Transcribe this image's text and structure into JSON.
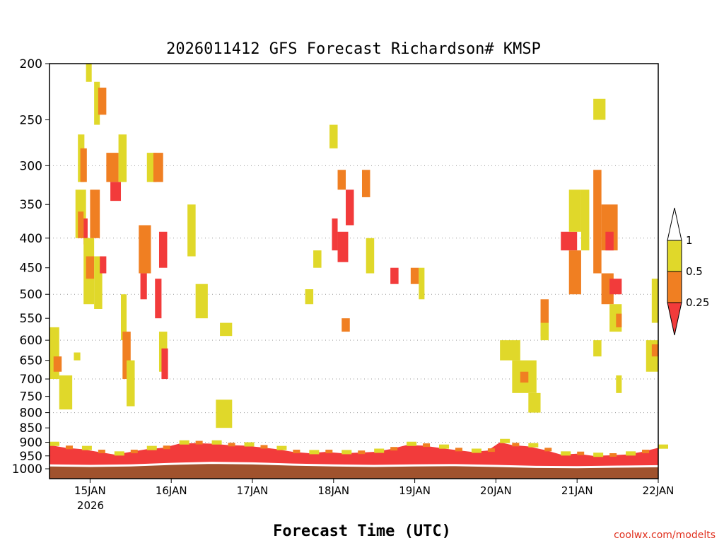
{
  "chart_data": {
    "type": "heatmap",
    "title": "2026011412 GFS Forecast Richardson# KMSP",
    "xlabel": "Forecast Time (UTC)",
    "credit": "coolwx.com/modelts",
    "x_tick_labels": [
      "15JAN",
      "16JAN",
      "17JAN",
      "18JAN",
      "19JAN",
      "20JAN",
      "21JAN",
      "22JAN"
    ],
    "x_year_label": "2026",
    "x_range_days": [
      14.5,
      22.0
    ],
    "y_tick_labels": [
      "200",
      "250",
      "300",
      "350",
      "400",
      "450",
      "500",
      "550",
      "600",
      "650",
      "700",
      "750",
      "800",
      "850",
      "900",
      "950",
      "1000"
    ],
    "y_range_hPa": [
      200,
      1040
    ],
    "grid": "dotted horizontal at 300, 400, 500, 600, 700, 800, 900",
    "legend": {
      "placement": "right",
      "levels": [
        "1",
        "0.5",
        "0.25"
      ],
      "colors": {
        "ri_0.5_1": "#e0d82a",
        "ri_0.25_0.5": "#f07f22",
        "ri_below_0.25": "#f23b3b",
        "terrain": "#a0522d"
      }
    },
    "notes": "Cells are time (day of January) x pressure (hPa) patches colored by Richardson number bin.",
    "regions": [
      {
        "t0": 14.5,
        "t1": 14.62,
        "p0": 570,
        "p1": 700,
        "bin": "y"
      },
      {
        "t0": 14.55,
        "t1": 14.65,
        "p0": 640,
        "p1": 680,
        "bin": "o"
      },
      {
        "t0": 14.62,
        "t1": 14.78,
        "p0": 690,
        "p1": 790,
        "bin": "y"
      },
      {
        "t0": 14.8,
        "t1": 14.88,
        "p0": 630,
        "p1": 650,
        "bin": "y"
      },
      {
        "t0": 14.85,
        "t1": 14.93,
        "p0": 265,
        "p1": 320,
        "bin": "y"
      },
      {
        "t0": 14.88,
        "t1": 14.96,
        "p0": 280,
        "p1": 320,
        "bin": "o"
      },
      {
        "t0": 14.82,
        "t1": 14.95,
        "p0": 330,
        "p1": 400,
        "bin": "y"
      },
      {
        "t0": 14.85,
        "t1": 14.92,
        "p0": 360,
        "p1": 400,
        "bin": "o"
      },
      {
        "t0": 14.92,
        "t1": 14.97,
        "p0": 370,
        "p1": 410,
        "bin": "r"
      },
      {
        "t0": 14.92,
        "t1": 15.05,
        "p0": 400,
        "p1": 520,
        "bin": "y"
      },
      {
        "t0": 14.95,
        "t1": 15.05,
        "p0": 430,
        "p1": 470,
        "bin": "o"
      },
      {
        "t0": 14.95,
        "t1": 15.02,
        "p0": 200,
        "p1": 215,
        "bin": "y"
      },
      {
        "t0": 15.05,
        "t1": 15.12,
        "p0": 215,
        "p1": 255,
        "bin": "y"
      },
      {
        "t0": 15.1,
        "t1": 15.2,
        "p0": 220,
        "p1": 245,
        "bin": "o"
      },
      {
        "t0": 15.0,
        "t1": 15.12,
        "p0": 330,
        "p1": 400,
        "bin": "o"
      },
      {
        "t0": 15.05,
        "t1": 15.15,
        "p0": 430,
        "p1": 530,
        "bin": "y"
      },
      {
        "t0": 15.12,
        "t1": 15.2,
        "p0": 430,
        "p1": 460,
        "bin": "r"
      },
      {
        "t0": 15.2,
        "t1": 15.35,
        "p0": 285,
        "p1": 320,
        "bin": "o"
      },
      {
        "t0": 15.25,
        "t1": 15.38,
        "p0": 320,
        "p1": 345,
        "bin": "r"
      },
      {
        "t0": 15.35,
        "t1": 15.45,
        "p0": 265,
        "p1": 320,
        "bin": "y"
      },
      {
        "t0": 15.38,
        "t1": 15.45,
        "p0": 500,
        "p1": 600,
        "bin": "y"
      },
      {
        "t0": 15.4,
        "t1": 15.5,
        "p0": 580,
        "p1": 700,
        "bin": "o"
      },
      {
        "t0": 15.45,
        "t1": 15.55,
        "p0": 650,
        "p1": 780,
        "bin": "y"
      },
      {
        "t0": 15.6,
        "t1": 15.75,
        "p0": 380,
        "p1": 460,
        "bin": "o"
      },
      {
        "t0": 15.62,
        "t1": 15.7,
        "p0": 460,
        "p1": 510,
        "bin": "r"
      },
      {
        "t0": 15.7,
        "t1": 15.82,
        "p0": 285,
        "p1": 320,
        "bin": "y"
      },
      {
        "t0": 15.78,
        "t1": 15.9,
        "p0": 285,
        "p1": 320,
        "bin": "o"
      },
      {
        "t0": 15.85,
        "t1": 15.95,
        "p0": 390,
        "p1": 450,
        "bin": "r"
      },
      {
        "t0": 15.8,
        "t1": 15.88,
        "p0": 470,
        "p1": 550,
        "bin": "r"
      },
      {
        "t0": 15.85,
        "t1": 15.95,
        "p0": 580,
        "p1": 680,
        "bin": "y"
      },
      {
        "t0": 15.88,
        "t1": 15.96,
        "p0": 620,
        "p1": 700,
        "bin": "r"
      },
      {
        "t0": 16.2,
        "t1": 16.3,
        "p0": 350,
        "p1": 430,
        "bin": "y"
      },
      {
        "t0": 16.3,
        "t1": 16.45,
        "p0": 480,
        "p1": 550,
        "bin": "y"
      },
      {
        "t0": 16.55,
        "t1": 16.75,
        "p0": 760,
        "p1": 850,
        "bin": "y"
      },
      {
        "t0": 16.6,
        "t1": 16.75,
        "p0": 560,
        "p1": 590,
        "bin": "y"
      },
      {
        "t0": 17.65,
        "t1": 17.75,
        "p0": 490,
        "p1": 520,
        "bin": "y"
      },
      {
        "t0": 17.75,
        "t1": 17.85,
        "p0": 420,
        "p1": 450,
        "bin": "y"
      },
      {
        "t0": 17.95,
        "t1": 18.05,
        "p0": 255,
        "p1": 280,
        "bin": "y"
      },
      {
        "t0": 18.05,
        "t1": 18.15,
        "p0": 305,
        "p1": 330,
        "bin": "o"
      },
      {
        "t0": 17.98,
        "t1": 18.05,
        "p0": 370,
        "p1": 420,
        "bin": "r"
      },
      {
        "t0": 18.05,
        "t1": 18.18,
        "p0": 390,
        "p1": 440,
        "bin": "r"
      },
      {
        "t0": 18.15,
        "t1": 18.25,
        "p0": 330,
        "p1": 380,
        "bin": "r"
      },
      {
        "t0": 18.1,
        "t1": 18.2,
        "p0": 550,
        "p1": 580,
        "bin": "o"
      },
      {
        "t0": 18.35,
        "t1": 18.45,
        "p0": 305,
        "p1": 340,
        "bin": "o"
      },
      {
        "t0": 18.4,
        "t1": 18.5,
        "p0": 400,
        "p1": 460,
        "bin": "y"
      },
      {
        "t0": 18.7,
        "t1": 18.8,
        "p0": 450,
        "p1": 480,
        "bin": "r"
      },
      {
        "t0": 18.95,
        "t1": 19.05,
        "p0": 450,
        "p1": 480,
        "bin": "o"
      },
      {
        "t0": 19.05,
        "t1": 19.12,
        "p0": 450,
        "p1": 510,
        "bin": "y"
      },
      {
        "t0": 20.05,
        "t1": 20.3,
        "p0": 600,
        "p1": 650,
        "bin": "y"
      },
      {
        "t0": 20.2,
        "t1": 20.5,
        "p0": 650,
        "p1": 740,
        "bin": "y"
      },
      {
        "t0": 20.3,
        "t1": 20.4,
        "p0": 680,
        "p1": 710,
        "bin": "o"
      },
      {
        "t0": 20.4,
        "t1": 20.55,
        "p0": 740,
        "p1": 800,
        "bin": "y"
      },
      {
        "t0": 20.55,
        "t1": 20.65,
        "p0": 510,
        "p1": 590,
        "bin": "o"
      },
      {
        "t0": 20.55,
        "t1": 20.65,
        "p0": 560,
        "p1": 600,
        "bin": "y"
      },
      {
        "t0": 20.8,
        "t1": 21.0,
        "p0": 390,
        "p1": 420,
        "bin": "r"
      },
      {
        "t0": 20.9,
        "t1": 21.05,
        "p0": 420,
        "p1": 500,
        "bin": "o"
      },
      {
        "t0": 20.9,
        "t1": 21.05,
        "p0": 330,
        "p1": 390,
        "bin": "y"
      },
      {
        "t0": 21.05,
        "t1": 21.15,
        "p0": 330,
        "p1": 420,
        "bin": "y"
      },
      {
        "t0": 21.2,
        "t1": 21.35,
        "p0": 230,
        "p1": 250,
        "bin": "y"
      },
      {
        "t0": 21.2,
        "t1": 21.3,
        "p0": 305,
        "p1": 460,
        "bin": "o"
      },
      {
        "t0": 21.3,
        "t1": 21.5,
        "p0": 350,
        "p1": 420,
        "bin": "o"
      },
      {
        "t0": 21.35,
        "t1": 21.45,
        "p0": 390,
        "p1": 420,
        "bin": "r"
      },
      {
        "t0": 21.3,
        "t1": 21.45,
        "p0": 460,
        "p1": 520,
        "bin": "o"
      },
      {
        "t0": 21.4,
        "t1": 21.55,
        "p0": 470,
        "p1": 500,
        "bin": "r"
      },
      {
        "t0": 21.4,
        "t1": 21.55,
        "p0": 520,
        "p1": 580,
        "bin": "y"
      },
      {
        "t0": 21.48,
        "t1": 21.55,
        "p0": 540,
        "p1": 570,
        "bin": "o"
      },
      {
        "t0": 21.48,
        "t1": 21.55,
        "p0": 690,
        "p1": 740,
        "bin": "y"
      },
      {
        "t0": 21.2,
        "t1": 21.3,
        "p0": 600,
        "p1": 640,
        "bin": "y"
      },
      {
        "t0": 21.85,
        "t1": 22.0,
        "p0": 600,
        "p1": 680,
        "bin": "y"
      },
      {
        "t0": 21.92,
        "t1": 22.0,
        "p0": 470,
        "p1": 560,
        "bin": "y"
      },
      {
        "t0": 21.92,
        "t1": 22.0,
        "p0": 610,
        "p1": 640,
        "bin": "o"
      }
    ],
    "boundary_layer_top_hPa": [
      [
        14.5,
        910
      ],
      [
        14.7,
        920
      ],
      [
        14.9,
        925
      ],
      [
        15.1,
        935
      ],
      [
        15.3,
        945
      ],
      [
        15.5,
        935
      ],
      [
        15.7,
        925
      ],
      [
        15.9,
        920
      ],
      [
        16.1,
        905
      ],
      [
        16.3,
        903
      ],
      [
        16.5,
        905
      ],
      [
        16.7,
        910
      ],
      [
        16.9,
        912
      ],
      [
        17.1,
        918
      ],
      [
        17.3,
        925
      ],
      [
        17.5,
        935
      ],
      [
        17.7,
        940
      ],
      [
        17.9,
        935
      ],
      [
        18.1,
        940
      ],
      [
        18.3,
        938
      ],
      [
        18.5,
        935
      ],
      [
        18.7,
        925
      ],
      [
        18.9,
        910
      ],
      [
        19.1,
        912
      ],
      [
        19.3,
        920
      ],
      [
        19.5,
        928
      ],
      [
        19.7,
        935
      ],
      [
        19.9,
        930
      ],
      [
        20.05,
        900
      ],
      [
        20.2,
        910
      ],
      [
        20.4,
        915
      ],
      [
        20.6,
        928
      ],
      [
        20.8,
        945
      ],
      [
        21.0,
        942
      ],
      [
        21.2,
        950
      ],
      [
        21.4,
        948
      ],
      [
        21.6,
        945
      ],
      [
        21.8,
        935
      ],
      [
        22.0,
        920
      ]
    ],
    "surface_hPa": [
      [
        14.5,
        988
      ],
      [
        15.0,
        990
      ],
      [
        15.5,
        988
      ],
      [
        16.0,
        982
      ],
      [
        16.5,
        978
      ],
      [
        17.0,
        980
      ],
      [
        17.5,
        985
      ],
      [
        18.0,
        988
      ],
      [
        18.5,
        990
      ],
      [
        19.0,
        988
      ],
      [
        19.5,
        987
      ],
      [
        20.0,
        990
      ],
      [
        20.5,
        994
      ],
      [
        21.0,
        995
      ],
      [
        21.5,
        993
      ],
      [
        22.0,
        991
      ]
    ]
  }
}
